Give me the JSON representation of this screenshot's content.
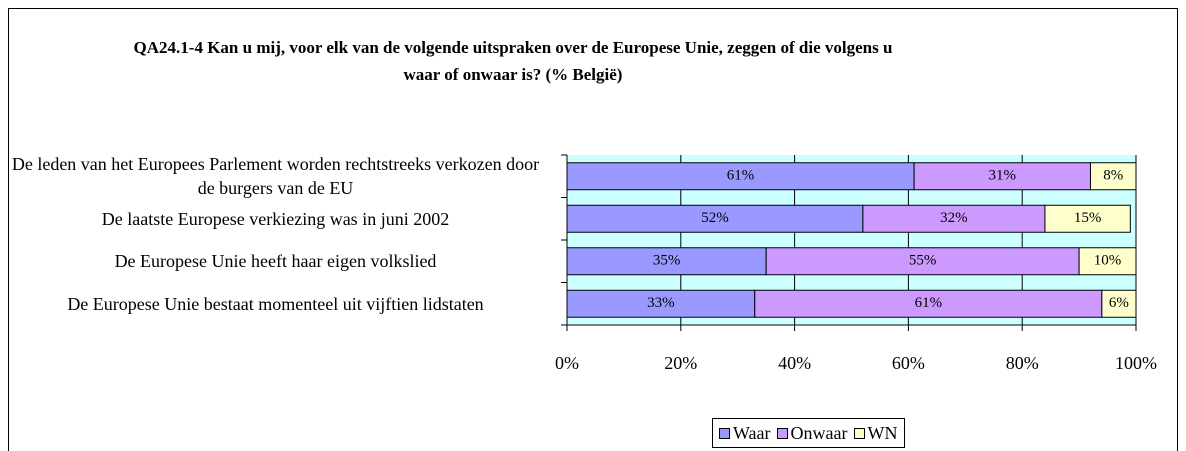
{
  "chart_data": {
    "type": "stacked-bar-horizontal",
    "title": "QA24.1-4 Kan u mij, voor elk van de volgende uitspraken over de Europese Unie, zeggen of die volgens u waar of onwaar is? (% België)",
    "categories": [
      "De leden van het Europees Parlement worden rechtstreeks verkozen door de burgers van de EU",
      "De laatste Europese verkiezing was in juni 2002",
      "De Europese Unie heeft haar eigen volkslied",
      "De Europese Unie bestaat momenteel uit vijftien lidstaten"
    ],
    "series": [
      {
        "name": "Waar",
        "color": "#9999ff",
        "values": [
          61,
          52,
          35,
          33
        ],
        "value_labels": [
          "61%",
          "52%",
          "35%",
          "33%"
        ]
      },
      {
        "name": "Onwaar",
        "color": "#cc99ff",
        "values": [
          31,
          32,
          55,
          61
        ],
        "value_labels": [
          "31%",
          "32%",
          "55%",
          "61%"
        ]
      },
      {
        "name": "WN",
        "color": "#ffffcc",
        "values": [
          8,
          15,
          10,
          6
        ],
        "value_labels": [
          "8%",
          "15%",
          "10%",
          "6%"
        ]
      }
    ],
    "xlim": [
      0,
      100
    ],
    "xticks": [
      {
        "value": 0,
        "label": "0%"
      },
      {
        "value": 20,
        "label": "20%"
      },
      {
        "value": 40,
        "label": "40%"
      },
      {
        "value": 60,
        "label": "60%"
      },
      {
        "value": 80,
        "label": "80%"
      },
      {
        "value": 100,
        "label": "100%"
      }
    ],
    "grid": true,
    "plot_background": "#ccffff",
    "legend": "bottom"
  }
}
